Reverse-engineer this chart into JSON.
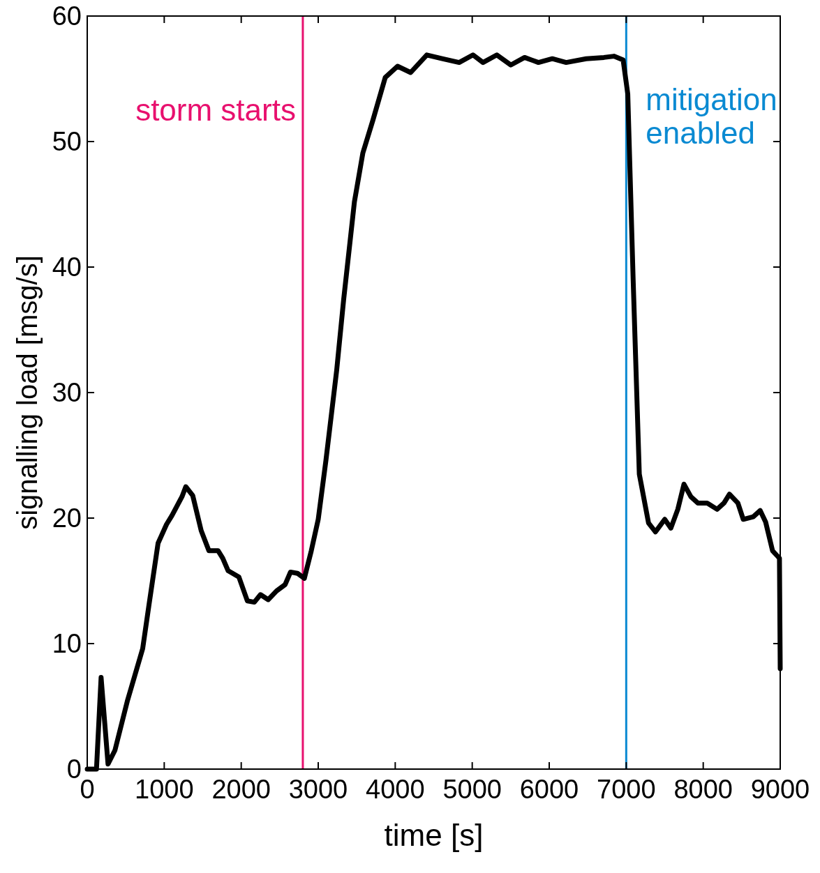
{
  "chart_data": {
    "type": "line",
    "xlabel": "time [s]",
    "ylabel": "signalling load [msg/s]",
    "xlim": [
      0,
      9000
    ],
    "ylim": [
      0,
      60
    ],
    "xticks": [
      0,
      1000,
      2000,
      3000,
      4000,
      5000,
      6000,
      7000,
      8000,
      9000
    ],
    "yticks": [
      0,
      10,
      20,
      30,
      40,
      50,
      60
    ],
    "grid": false,
    "series": [
      {
        "color": "#000000",
        "x": [
          0,
          120,
          180,
          270,
          360,
          520,
          720,
          800,
          920,
          1030,
          1100,
          1230,
          1280,
          1370,
          1480,
          1580,
          1700,
          1760,
          1830,
          1970,
          2080,
          2170,
          2250,
          2350,
          2460,
          2570,
          2640,
          2730,
          2820,
          2910,
          3000,
          3100,
          3240,
          3330,
          3470,
          3580,
          3710,
          3870,
          4030,
          4200,
          4410,
          4610,
          4830,
          5010,
          5140,
          5320,
          5500,
          5680,
          5860,
          6040,
          6220,
          6480,
          6710,
          6840,
          6960,
          7020,
          7090,
          7170,
          7290,
          7380,
          7500,
          7580,
          7670,
          7750,
          7840,
          7930,
          8050,
          8180,
          8270,
          8340,
          8450,
          8520,
          8650,
          8740,
          8810,
          8900,
          8960,
          8990,
          9000
        ],
        "values": [
          0,
          0,
          7.3,
          0.4,
          1.5,
          5.4,
          9.6,
          13,
          18,
          19.5,
          20.2,
          21.7,
          22.5,
          21.8,
          19,
          17.4,
          17.4,
          16.8,
          15.8,
          15.3,
          13.4,
          13.3,
          13.9,
          13.5,
          14.2,
          14.7,
          15.7,
          15.6,
          15.2,
          17.4,
          19.9,
          24.6,
          31.8,
          37.4,
          45.2,
          49.1,
          51.7,
          55.1,
          56,
          55.5,
          56.9,
          56.6,
          56.3,
          56.9,
          56.3,
          56.9,
          56.1,
          56.7,
          56.3,
          56.6,
          56.3,
          56.6,
          56.7,
          56.8,
          56.5,
          53.8,
          39,
          23.5,
          19.6,
          18.9,
          19.9,
          19.2,
          20.7,
          22.7,
          21.7,
          21.2,
          21.2,
          20.7,
          21.2,
          21.9,
          21.2,
          19.9,
          20.1,
          20.6,
          19.7,
          17.4,
          17,
          16.8,
          8
        ]
      }
    ],
    "ref_lines": [
      {
        "axis": "x",
        "value": 2800,
        "label": "storm starts",
        "color": "#e8106e"
      },
      {
        "axis": "x",
        "value": 7000,
        "label": "mitigation enabled",
        "color": "#0a8ad2"
      }
    ]
  }
}
